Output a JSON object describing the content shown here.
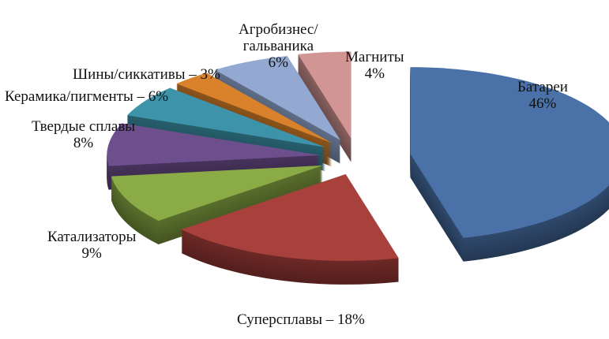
{
  "chart_data": {
    "type": "pie",
    "style": "3d-exploded",
    "unit": "%",
    "slices": [
      {
        "label": "Батареи",
        "value": 46,
        "text": "46%",
        "color": "#4a72a8"
      },
      {
        "label": "Суперсплавы",
        "value": 18,
        "text": "Суперсплавы – 18%",
        "color": "#a8403c"
      },
      {
        "label": "Катализаторы",
        "value": 9,
        "text": "9%",
        "color": "#8aab45"
      },
      {
        "label": "Твердые сплавы",
        "value": 8,
        "text": "8%",
        "color": "#6e4f8e"
      },
      {
        "label": "Керамика/пигменты",
        "value": 6,
        "text": "Керамика/пигменты – 6%",
        "color": "#3d94aa"
      },
      {
        "label": "Шины/сиккативы",
        "value": 3,
        "text": "Шины/сиккативы – 3%",
        "color": "#d9822b"
      },
      {
        "label": "Агробизнес/ гальваника",
        "value": 6,
        "text": "6%",
        "color": "#93a9d1"
      },
      {
        "label": "Магниты",
        "value": 4,
        "text": "4%",
        "color": "#d19593"
      }
    ]
  }
}
